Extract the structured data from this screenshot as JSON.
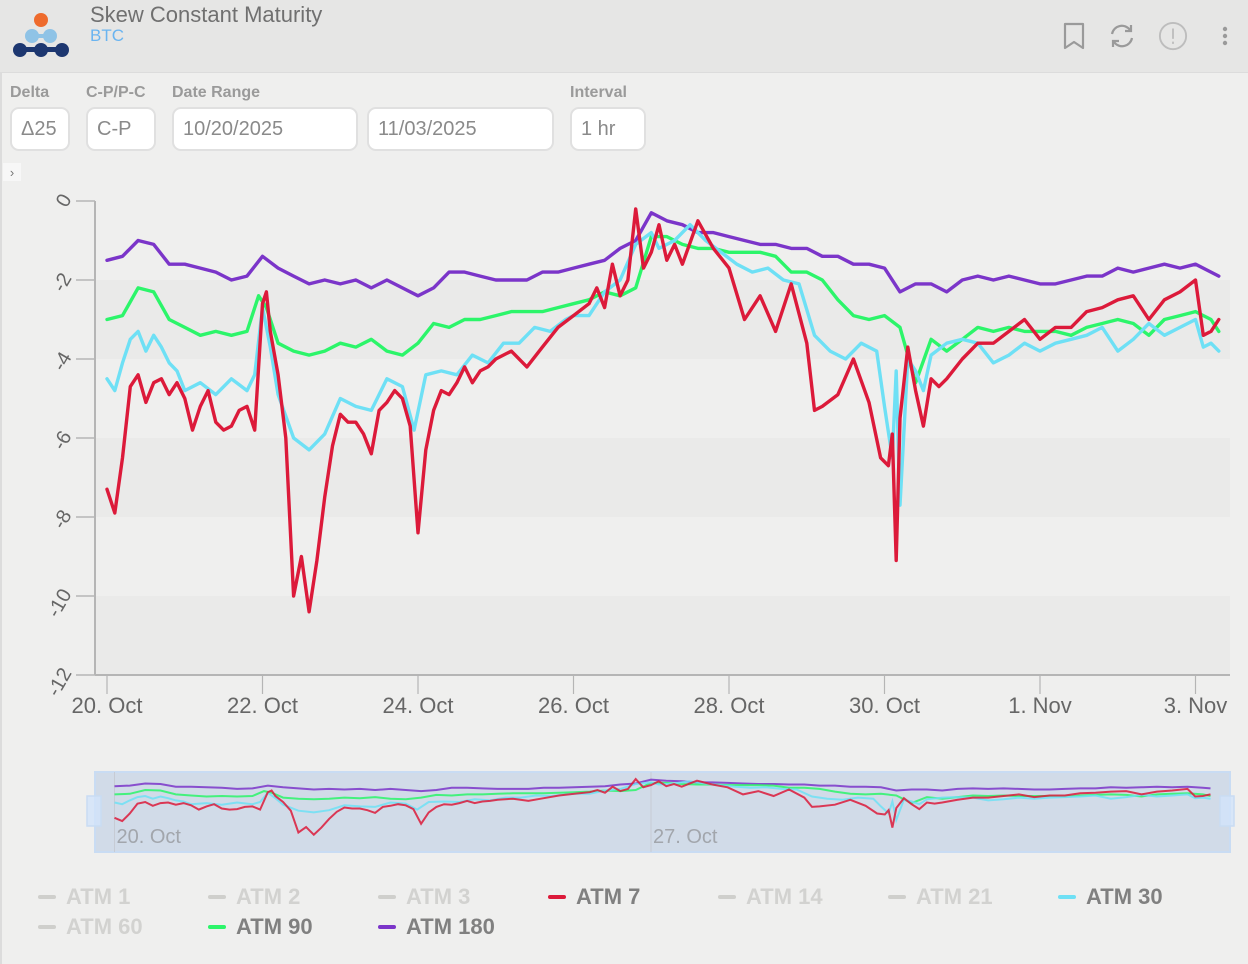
{
  "header": {
    "title": "Skew Constant Maturity",
    "subtitle": "BTC",
    "icons": [
      "bookmark-icon",
      "refresh-icon",
      "info-alert-icon",
      "more-vertical-icon"
    ]
  },
  "controls": {
    "delta": {
      "label": "Delta",
      "value": "Δ25"
    },
    "cp": {
      "label": "C-P/P-C",
      "value": "C-P"
    },
    "date_range": {
      "label": "Date Range",
      "start": "10/20/2025",
      "end": "11/03/2025"
    },
    "interval": {
      "label": "Interval",
      "value": "1 hr"
    },
    "expander_glyph": "›"
  },
  "colors": {
    "atm7": "#dc1a3a",
    "atm30": "#6ee0f5",
    "atm90": "#2cf56a",
    "atm180": "#7b35c9",
    "hidden": "#cfcfcc"
  },
  "chart_data": {
    "type": "line",
    "title": "Skew Constant Maturity",
    "xlabel": "",
    "ylabel": "",
    "ylim": [
      -12,
      0
    ],
    "yticks": [
      "0",
      "-2",
      "-4",
      "-6",
      "-8",
      "-10",
      "-12"
    ],
    "ytick_values": [
      0,
      -2,
      -4,
      -6,
      -8,
      -10,
      -12
    ],
    "xticks": [
      "20. Oct",
      "22. Oct",
      "24. Oct",
      "26. Oct",
      "28. Oct",
      "30. Oct",
      "1. Nov",
      "3. Nov"
    ],
    "xtick_values": [
      0,
      2,
      4,
      6,
      8,
      10,
      12,
      14
    ],
    "x_unit": "days since 20 Oct 2025 00:00",
    "xlim": [
      -0.15,
      14.45
    ],
    "grid": "alternating horizontal bands",
    "navigator_labels": [
      "20. Oct",
      "27. Oct"
    ],
    "navigator_label_values": [
      0,
      7
    ],
    "series": [
      {
        "name": "ATM 7",
        "color": "#dc1a3a",
        "visible": true,
        "x": [
          0,
          0.1,
          0.2,
          0.3,
          0.4,
          0.5,
          0.6,
          0.7,
          0.8,
          0.9,
          1.0,
          1.1,
          1.2,
          1.3,
          1.4,
          1.5,
          1.6,
          1.7,
          1.8,
          1.9,
          2.0,
          2.05,
          2.1,
          2.2,
          2.3,
          2.4,
          2.5,
          2.6,
          2.7,
          2.8,
          2.9,
          3.0,
          3.1,
          3.2,
          3.3,
          3.4,
          3.5,
          3.6,
          3.7,
          3.8,
          3.9,
          4.0,
          4.1,
          4.2,
          4.3,
          4.4,
          4.5,
          4.6,
          4.7,
          4.8,
          4.9,
          5.0,
          5.2,
          5.4,
          5.6,
          5.8,
          6.0,
          6.2,
          6.3,
          6.4,
          6.5,
          6.6,
          6.7,
          6.8,
          6.9,
          7.0,
          7.1,
          7.2,
          7.3,
          7.4,
          7.6,
          7.8,
          8.0,
          8.2,
          8.4,
          8.6,
          8.8,
          9.0,
          9.1,
          9.2,
          9.4,
          9.6,
          9.8,
          9.95,
          10.05,
          10.1,
          10.15,
          10.2,
          10.3,
          10.4,
          10.5,
          10.6,
          10.7,
          10.8,
          11.0,
          11.2,
          11.4,
          11.6,
          11.8,
          12.0,
          12.2,
          12.4,
          12.6,
          12.8,
          13.0,
          13.2,
          13.4,
          13.6,
          13.8,
          14.0,
          14.1,
          14.2,
          14.3
        ],
        "y": [
          -7.3,
          -7.9,
          -6.5,
          -4.7,
          -4.4,
          -5.1,
          -4.6,
          -4.5,
          -4.9,
          -4.6,
          -5.0,
          -5.8,
          -5.2,
          -4.8,
          -5.6,
          -5.8,
          -5.7,
          -5.3,
          -5.2,
          -5.8,
          -2.6,
          -2.3,
          -3.3,
          -4.4,
          -6.0,
          -10.0,
          -9.0,
          -10.4,
          -9.1,
          -7.5,
          -6.2,
          -5.4,
          -5.6,
          -5.6,
          -5.9,
          -6.4,
          -5.3,
          -5.1,
          -4.8,
          -5.0,
          -5.7,
          -8.4,
          -6.3,
          -5.3,
          -4.8,
          -4.9,
          -4.6,
          -4.2,
          -4.6,
          -4.3,
          -4.2,
          -4.0,
          -3.8,
          -4.2,
          -3.7,
          -3.2,
          -2.9,
          -2.6,
          -2.2,
          -2.7,
          -1.6,
          -2.4,
          -2.0,
          -0.2,
          -1.7,
          -1.3,
          -0.6,
          -1.5,
          -1.1,
          -1.6,
          -0.5,
          -1.2,
          -1.7,
          -3.0,
          -2.4,
          -3.3,
          -2.1,
          -3.6,
          -5.3,
          -5.2,
          -4.9,
          -4.0,
          -5.1,
          -6.5,
          -6.7,
          -5.9,
          -9.1,
          -5.5,
          -3.7,
          -4.8,
          -5.7,
          -4.5,
          -4.7,
          -4.5,
          -4.0,
          -3.6,
          -3.6,
          -3.3,
          -3.0,
          -3.5,
          -3.2,
          -3.2,
          -2.8,
          -2.7,
          -2.5,
          -2.4,
          -3.0,
          -2.5,
          -2.3,
          -2.0,
          -3.4,
          -3.3,
          -3.0
        ]
      },
      {
        "name": "ATM 30",
        "color": "#6ee0f5",
        "visible": true,
        "x": [
          0,
          0.1,
          0.2,
          0.3,
          0.4,
          0.5,
          0.6,
          0.7,
          0.8,
          0.9,
          1.0,
          1.2,
          1.4,
          1.6,
          1.8,
          1.9,
          2.0,
          2.1,
          2.2,
          2.4,
          2.6,
          2.8,
          3.0,
          3.2,
          3.4,
          3.6,
          3.8,
          3.95,
          4.1,
          4.3,
          4.5,
          4.7,
          4.9,
          5.1,
          5.3,
          5.5,
          5.7,
          5.9,
          6.0,
          6.2,
          6.4,
          6.6,
          6.8,
          7.0,
          7.1,
          7.3,
          7.5,
          7.7,
          7.9,
          8.1,
          8.3,
          8.5,
          8.7,
          8.9,
          9.1,
          9.3,
          9.5,
          9.7,
          9.9,
          10.0,
          10.1,
          10.15,
          10.2,
          10.3,
          10.4,
          10.5,
          10.6,
          10.8,
          11.0,
          11.2,
          11.4,
          11.6,
          11.8,
          12.0,
          12.2,
          12.4,
          12.6,
          12.8,
          13.0,
          13.2,
          13.4,
          13.6,
          13.8,
          14.0,
          14.1,
          14.2,
          14.3
        ],
        "y": [
          -4.5,
          -4.8,
          -4.1,
          -3.5,
          -3.3,
          -3.8,
          -3.4,
          -3.7,
          -4.1,
          -4.3,
          -4.8,
          -4.6,
          -4.9,
          -4.5,
          -4.8,
          -4.4,
          -2.7,
          -3.7,
          -4.9,
          -6.0,
          -6.3,
          -5.9,
          -5.0,
          -5.2,
          -5.3,
          -4.5,
          -4.7,
          -5.8,
          -4.4,
          -4.3,
          -4.4,
          -3.9,
          -4.1,
          -3.6,
          -3.6,
          -3.2,
          -3.3,
          -3.0,
          -2.9,
          -2.9,
          -2.3,
          -2.0,
          -1.1,
          -0.8,
          -1.2,
          -1.0,
          -0.6,
          -1.0,
          -1.3,
          -1.6,
          -1.8,
          -1.7,
          -2.0,
          -2.1,
          -3.4,
          -3.8,
          -4.0,
          -3.6,
          -3.8,
          -5.2,
          -6.5,
          -4.3,
          -7.7,
          -4.0,
          -4.3,
          -4.8,
          -3.9,
          -3.6,
          -3.5,
          -3.6,
          -4.1,
          -3.9,
          -3.6,
          -3.8,
          -3.6,
          -3.5,
          -3.4,
          -3.2,
          -3.8,
          -3.5,
          -3.1,
          -3.4,
          -3.2,
          -3.0,
          -3.7,
          -3.6,
          -3.8
        ]
      },
      {
        "name": "ATM 90",
        "color": "#2cf56a",
        "visible": true,
        "x": [
          0,
          0.2,
          0.4,
          0.6,
          0.8,
          1.0,
          1.2,
          1.4,
          1.6,
          1.8,
          1.95,
          2.05,
          2.2,
          2.4,
          2.6,
          2.8,
          3.0,
          3.2,
          3.4,
          3.6,
          3.8,
          4.0,
          4.2,
          4.4,
          4.6,
          4.8,
          5.0,
          5.2,
          5.4,
          5.6,
          5.8,
          6.0,
          6.2,
          6.4,
          6.6,
          6.8,
          7.0,
          7.2,
          7.4,
          7.6,
          7.8,
          8.0,
          8.2,
          8.4,
          8.6,
          8.8,
          9.0,
          9.2,
          9.4,
          9.6,
          9.8,
          10.0,
          10.2,
          10.4,
          10.6,
          10.8,
          11.0,
          11.2,
          11.4,
          11.6,
          11.8,
          12.0,
          12.2,
          12.4,
          12.6,
          12.8,
          13.0,
          13.2,
          13.4,
          13.6,
          13.8,
          14.0,
          14.2,
          14.3
        ],
        "y": [
          -3.0,
          -2.9,
          -2.2,
          -2.3,
          -3.0,
          -3.2,
          -3.4,
          -3.3,
          -3.4,
          -3.3,
          -2.4,
          -2.7,
          -3.6,
          -3.8,
          -3.9,
          -3.8,
          -3.6,
          -3.7,
          -3.5,
          -3.8,
          -3.9,
          -3.6,
          -3.1,
          -3.2,
          -3.0,
          -3.0,
          -2.9,
          -2.8,
          -2.8,
          -2.8,
          -2.7,
          -2.6,
          -2.5,
          -2.3,
          -2.4,
          -2.2,
          -0.9,
          -0.9,
          -1.1,
          -1.2,
          -1.2,
          -1.3,
          -1.3,
          -1.3,
          -1.4,
          -1.8,
          -1.8,
          -2.0,
          -2.5,
          -2.9,
          -3.0,
          -2.9,
          -3.2,
          -4.6,
          -3.5,
          -3.8,
          -3.5,
          -3.2,
          -3.3,
          -3.2,
          -3.3,
          -3.3,
          -3.3,
          -3.4,
          -3.2,
          -3.1,
          -3.0,
          -3.1,
          -3.4,
          -3.0,
          -2.9,
          -2.8,
          -3.0,
          -3.3
        ]
      },
      {
        "name": "ATM 180",
        "color": "#7b35c9",
        "visible": true,
        "x": [
          0,
          0.2,
          0.4,
          0.6,
          0.8,
          1.0,
          1.2,
          1.4,
          1.6,
          1.8,
          2.0,
          2.2,
          2.4,
          2.6,
          2.8,
          3.0,
          3.2,
          3.4,
          3.6,
          3.8,
          4.0,
          4.2,
          4.4,
          4.6,
          4.8,
          5.0,
          5.2,
          5.4,
          5.6,
          5.8,
          6.0,
          6.2,
          6.4,
          6.6,
          6.8,
          7.0,
          7.2,
          7.4,
          7.6,
          7.8,
          8.0,
          8.2,
          8.4,
          8.6,
          8.8,
          9.0,
          9.2,
          9.4,
          9.6,
          9.8,
          10.0,
          10.2,
          10.4,
          10.6,
          10.8,
          11.0,
          11.2,
          11.4,
          11.6,
          11.8,
          12.0,
          12.2,
          12.4,
          12.6,
          12.8,
          13.0,
          13.2,
          13.4,
          13.6,
          13.8,
          14.0,
          14.2,
          14.3
        ],
        "y": [
          -1.5,
          -1.4,
          -1.0,
          -1.1,
          -1.6,
          -1.6,
          -1.7,
          -1.8,
          -2.0,
          -1.9,
          -1.4,
          -1.7,
          -1.9,
          -2.1,
          -2.0,
          -2.1,
          -2.0,
          -2.2,
          -2.0,
          -2.2,
          -2.4,
          -2.2,
          -1.8,
          -1.8,
          -1.9,
          -2.0,
          -2.0,
          -2.0,
          -1.8,
          -1.8,
          -1.7,
          -1.6,
          -1.5,
          -1.2,
          -1.0,
          -0.3,
          -0.5,
          -0.6,
          -0.8,
          -0.8,
          -0.9,
          -1.0,
          -1.1,
          -1.1,
          -1.2,
          -1.2,
          -1.4,
          -1.4,
          -1.6,
          -1.6,
          -1.7,
          -2.3,
          -2.1,
          -2.1,
          -2.3,
          -2.0,
          -1.9,
          -2.0,
          -1.9,
          -2.0,
          -2.1,
          -2.1,
          -2.0,
          -1.9,
          -1.9,
          -1.7,
          -1.8,
          -1.7,
          -1.6,
          -1.7,
          -1.6,
          -1.8,
          -1.9
        ]
      }
    ]
  },
  "legend": [
    {
      "label": "ATM 1",
      "color": "#cfcfcc",
      "active": false
    },
    {
      "label": "ATM 2",
      "color": "#cfcfcc",
      "active": false
    },
    {
      "label": "ATM 3",
      "color": "#cfcfcc",
      "active": false
    },
    {
      "label": "ATM 7",
      "color": "#dc1a3a",
      "active": true
    },
    {
      "label": "ATM 14",
      "color": "#cfcfcc",
      "active": false
    },
    {
      "label": "ATM 21",
      "color": "#cfcfcc",
      "active": false
    },
    {
      "label": "ATM 30",
      "color": "#6ee0f5",
      "active": true
    },
    {
      "label": "ATM 60",
      "color": "#cfcfcc",
      "active": false
    },
    {
      "label": "ATM 90",
      "color": "#2cf56a",
      "active": true
    },
    {
      "label": "ATM 180",
      "color": "#7b35c9",
      "active": true
    }
  ]
}
